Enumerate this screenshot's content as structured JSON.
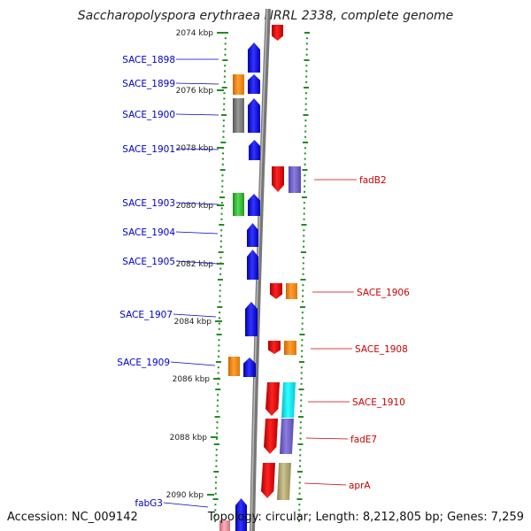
{
  "title": "Saccharopolyspora erythraea NRRL 2338, complete genome",
  "footer": {
    "accession": "Accession: NC_009142",
    "summary": "Topology: circular; Length: 8,212,805 bp; Genes: 7,259"
  },
  "colors": {
    "left_label": "#0000cc",
    "right_label": "#cc0000",
    "ruler_dots": "#228b22",
    "backbone": "#888888"
  },
  "kbp_marks": [
    "2074 kbp",
    "2076 kbp",
    "2078 kbp",
    "2080 kbp",
    "2082 kbp",
    "2084 kbp",
    "2086 kbp",
    "2088 kbp",
    "2090 kbp"
  ],
  "left_genes": [
    {
      "label": "SACE_1898"
    },
    {
      "label": "SACE_1899"
    },
    {
      "label": "SACE_1900"
    },
    {
      "label": "SACE_1901"
    },
    {
      "label": "SACE_1903"
    },
    {
      "label": "SACE_1904"
    },
    {
      "label": "SACE_1905"
    },
    {
      "label": "SACE_1907"
    },
    {
      "label": "SACE_1909"
    },
    {
      "label": "fabG3"
    }
  ],
  "right_genes": [
    {
      "label": "fadB2"
    },
    {
      "label": "SACE_1906"
    },
    {
      "label": "SACE_1908"
    },
    {
      "label": "SACE_1910"
    },
    {
      "label": "fadE7"
    },
    {
      "label": "aprA"
    }
  ]
}
